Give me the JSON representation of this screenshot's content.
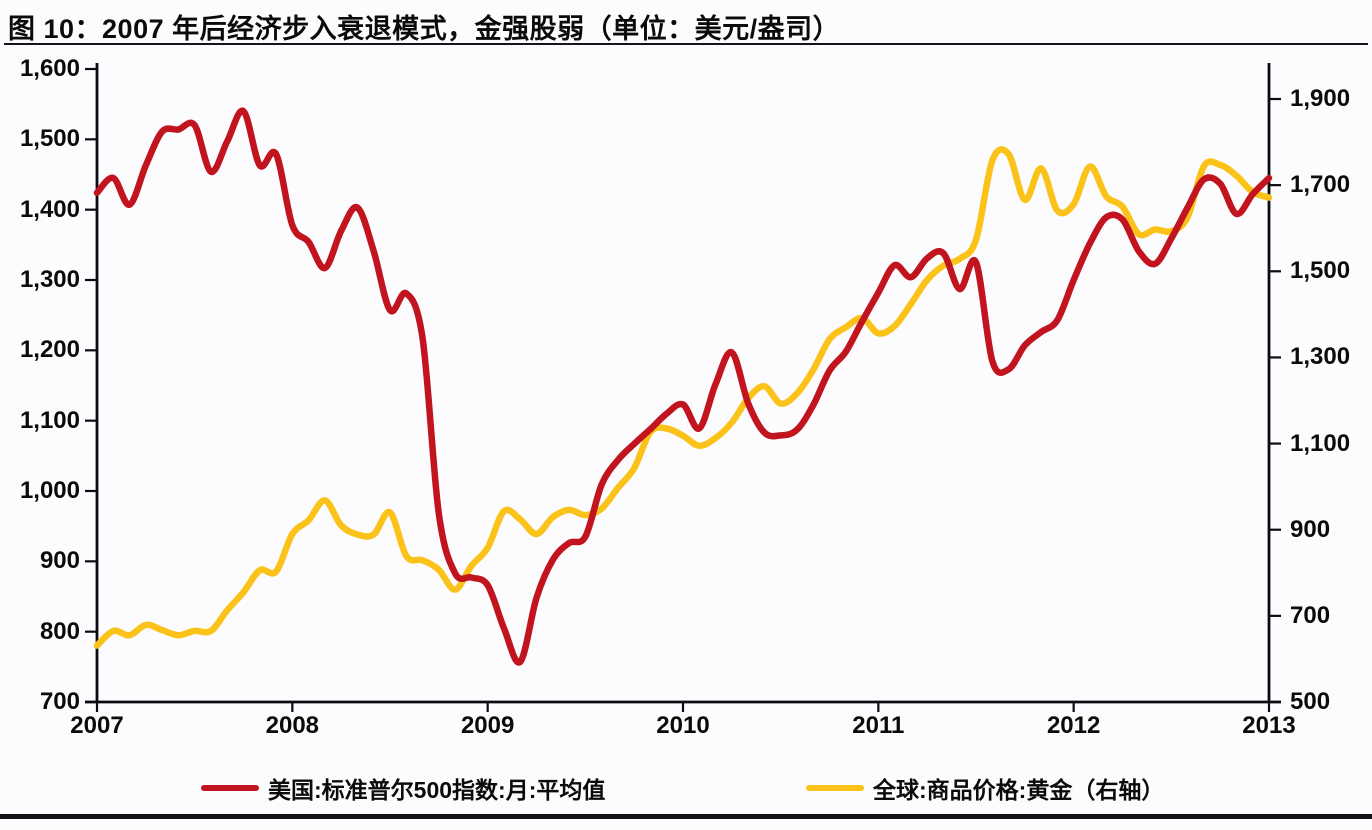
{
  "figure": {
    "title": "图 10：2007 年后经济步入衰退模式，金强股弱（单位：美元/盎司）"
  },
  "chart_data": {
    "type": "line",
    "title": "图 10：2007 年后经济步入衰退模式，金强股弱（单位：美元/盎司）",
    "unit_note": "美元/盎司",
    "x_unit": "month",
    "x_range": [
      "2007-01",
      "2013-01"
    ],
    "x_tick_labels": [
      "2007",
      "2008",
      "2009",
      "2010",
      "2011",
      "2012",
      "2013"
    ],
    "grid": false,
    "legend_position": "bottom",
    "left_axis": {
      "min": 700,
      "max": 1600,
      "tick_step": 100,
      "tick_labels": [
        "1,600",
        "1,500",
        "1,400",
        "1,300",
        "1,200",
        "1,100",
        "1,000",
        "900",
        "800",
        "700"
      ],
      "tick_values": [
        1600,
        1500,
        1400,
        1300,
        1200,
        1100,
        1000,
        900,
        800,
        700
      ]
    },
    "right_axis": {
      "min": 500,
      "max": 1900,
      "tick_step": 200,
      "tick_labels": [
        "1,900",
        "1,700",
        "1,500",
        "1,300",
        "1,100",
        "900",
        "700",
        "500"
      ],
      "tick_values": [
        1900,
        1700,
        1500,
        1300,
        1100,
        900,
        700,
        500
      ]
    },
    "series": [
      {
        "name": "美国:标准普尔500指数:月:平均值",
        "axis": "left",
        "color": "#C1141E",
        "stroke_width": 6.5,
        "values": [
          1424,
          1445,
          1407,
          1463,
          1511,
          1514,
          1520,
          1454,
          1497,
          1540,
          1463,
          1479,
          1378,
          1354,
          1317,
          1370,
          1403,
          1341,
          1257,
          1281,
          1217,
          968,
          883,
          877,
          866,
          805,
          757,
          848,
          902,
          926,
          935,
          1009,
          1044,
          1067,
          1088,
          1110,
          1123,
          1089,
          1152,
          1197,
          1125,
          1083,
          1079,
          1087,
          1122,
          1171,
          1198,
          1241,
          1282,
          1321,
          1304,
          1331,
          1338,
          1287,
          1325,
          1185,
          1173,
          1207,
          1226,
          1243,
          1300,
          1352,
          1389,
          1386,
          1341,
          1323,
          1359,
          1403,
          1443,
          1437,
          1394,
          1422,
          1445
        ]
      },
      {
        "name": "全球:商品价格:黄金（右轴）",
        "axis": "right",
        "color": "#FBC21A",
        "stroke_width": 6.5,
        "values": [
          631,
          665,
          655,
          679,
          667,
          655,
          665,
          665,
          713,
          755,
          806,
          803,
          890,
          922,
          968,
          910,
          889,
          889,
          940,
          839,
          829,
          807,
          761,
          816,
          858,
          943,
          924,
          890,
          929,
          946,
          934,
          949,
          997,
          1043,
          1127,
          1135,
          1118,
          1095,
          1113,
          1149,
          1205,
          1233,
          1193,
          1216,
          1271,
          1342,
          1370,
          1391,
          1356,
          1373,
          1424,
          1480,
          1513,
          1529,
          1573,
          1757,
          1772,
          1666,
          1739,
          1641,
          1656,
          1743,
          1674,
          1650,
          1586,
          1597,
          1593,
          1626,
          1744,
          1747,
          1722,
          1684,
          1671
        ]
      }
    ]
  }
}
